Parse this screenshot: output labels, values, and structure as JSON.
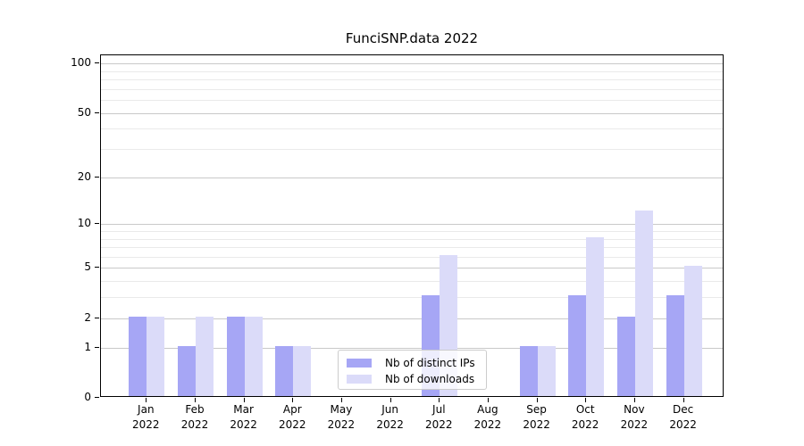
{
  "chart_data": {
    "type": "bar",
    "title": "FunciSNP.data 2022",
    "categories": [
      "Jan",
      "Feb",
      "Mar",
      "Apr",
      "May",
      "Jun",
      "Jul",
      "Aug",
      "Sep",
      "Oct",
      "Nov",
      "Dec"
    ],
    "year": "2022",
    "series": [
      {
        "name": "Nb of distinct IPs",
        "color": "#a6a6f5",
        "values": [
          2,
          1,
          2,
          1,
          0,
          0,
          3,
          0,
          1,
          3,
          2,
          3
        ]
      },
      {
        "name": "Nb of downloads",
        "color": "#dbdbf9",
        "values": [
          2,
          2,
          2,
          1,
          0,
          0,
          6,
          0,
          1,
          8,
          12,
          5
        ]
      }
    ],
    "yscale": "log1p",
    "ylim": [
      0,
      115
    ],
    "yticks": [
      100,
      50,
      20,
      10,
      5,
      2,
      1,
      0
    ],
    "major_gridlines": [
      1,
      2,
      5,
      10,
      20,
      50,
      100
    ],
    "minor_gridlines": [
      3,
      4,
      6,
      7,
      8,
      9,
      30,
      40,
      60,
      70,
      80,
      90
    ],
    "grid": true,
    "legend_position": "lower center"
  }
}
